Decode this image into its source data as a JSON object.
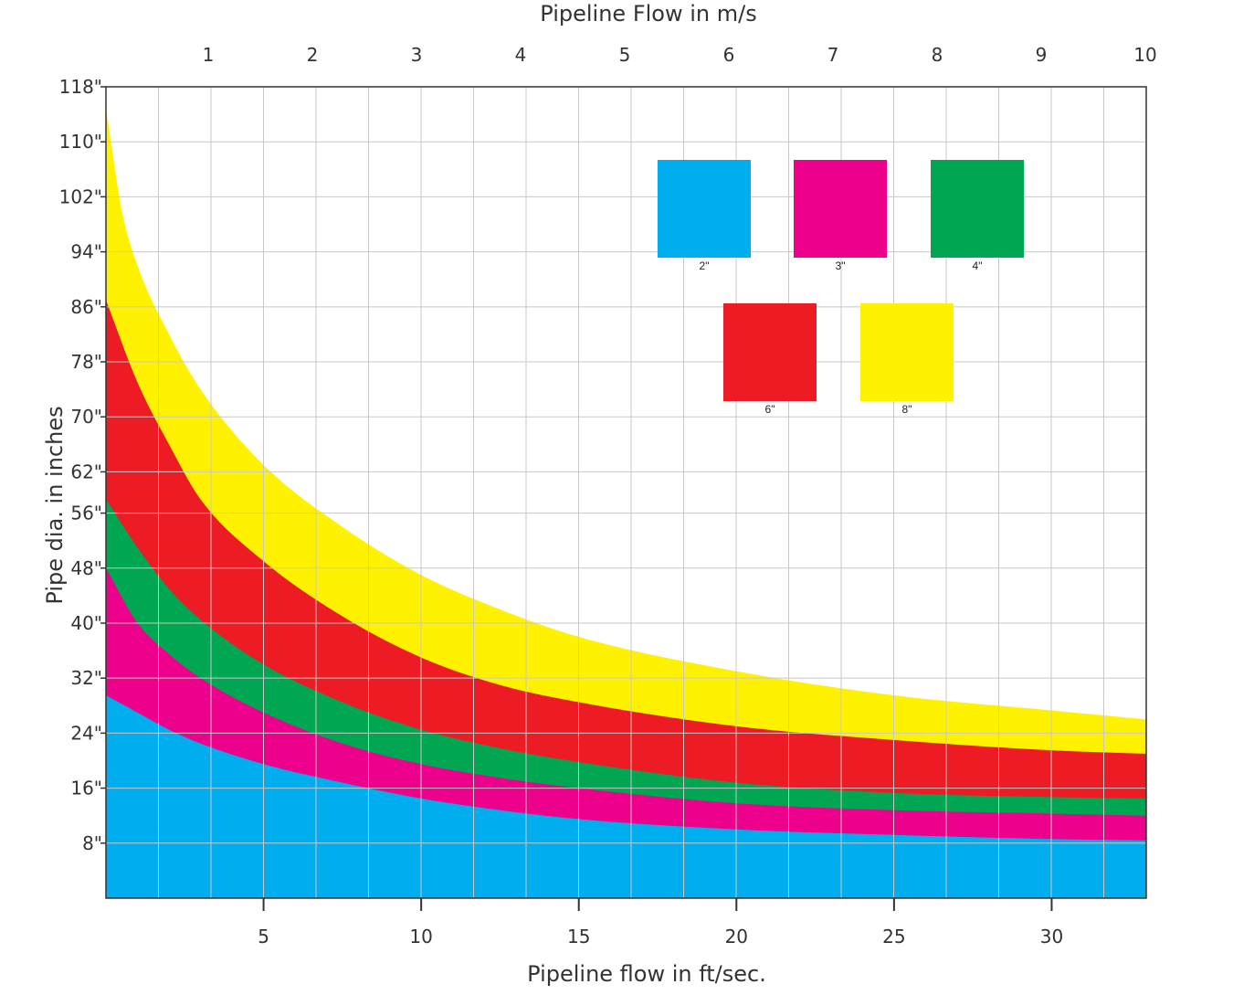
{
  "chart_data": {
    "type": "area",
    "xlabel": "Pipeline flow in ft/sec.",
    "x2label": "Pipeline Flow in m/s",
    "ylabel": "Pipe dia. in inches",
    "xlim": [
      0,
      33
    ],
    "ylim": [
      0,
      118
    ],
    "x_ticks": [
      5,
      10,
      15,
      20,
      25,
      30
    ],
    "x_tick_labels": [
      "5",
      "10",
      "15",
      "20",
      "25",
      "30"
    ],
    "x2_ticks": [
      1,
      2,
      3,
      4,
      5,
      6,
      7,
      8,
      9,
      10
    ],
    "x2_tick_labels": [
      "1",
      "2",
      "3",
      "4",
      "5",
      "6",
      "7",
      "8",
      "9",
      "10"
    ],
    "y_ticks": [
      8,
      16,
      24,
      32,
      40,
      48,
      56,
      62,
      70,
      78,
      86,
      94,
      102,
      110,
      118
    ],
    "y_tick_labels": [
      "8\"",
      "16\"",
      "24\"",
      "32\"",
      "40\"",
      "48\"",
      "56\"",
      "62\"",
      "70\"",
      "78\"",
      "86\"",
      "94\"",
      "102\"",
      "110\"",
      "118\""
    ],
    "grid": true,
    "legend_position": "top-right",
    "series": [
      {
        "name": "2\"",
        "color": "#00AEEF",
        "x": [
          0,
          1,
          2,
          3,
          5,
          7.5,
          10,
          12.5,
          15,
          20,
          25,
          30,
          33
        ],
        "values": [
          29.5,
          27,
          24.5,
          22.5,
          19.5,
          16.8,
          14.5,
          12.8,
          11.5,
          10,
          9.2,
          8.6,
          8.4
        ]
      },
      {
        "name": "3\"",
        "color": "#EC008C",
        "x": [
          0,
          1,
          2,
          3,
          5,
          7.5,
          10,
          12.5,
          15,
          20,
          25,
          30,
          33
        ],
        "values": [
          48,
          40,
          35.5,
          32,
          27,
          22.5,
          19.5,
          17.5,
          16,
          13.8,
          12.8,
          12.3,
          12
        ]
      },
      {
        "name": "4\"",
        "color": "#00A651",
        "x": [
          0,
          1,
          2,
          3,
          5,
          7.5,
          10,
          12.5,
          15,
          20,
          25,
          30,
          33
        ],
        "values": [
          58,
          51,
          45,
          40.5,
          34,
          28.5,
          24.5,
          21.8,
          19.8,
          16.8,
          15.3,
          14.7,
          14.5
        ]
      },
      {
        "name": "6\"",
        "color": "#ED1C24",
        "x": [
          0,
          1,
          2,
          3,
          5,
          7.5,
          10,
          12.5,
          15,
          20,
          25,
          30,
          33
        ],
        "values": [
          87,
          75,
          66,
          58,
          49,
          41,
          35,
          31,
          28.5,
          25,
          23,
          21.5,
          21
        ]
      },
      {
        "name": "8\"",
        "color": "#FFF200",
        "x": [
          0,
          0.5,
          1,
          2,
          3,
          5,
          7.5,
          10,
          12.5,
          15,
          20,
          25,
          30,
          33
        ],
        "values": [
          115,
          100,
          92,
          82,
          74,
          63,
          54,
          47,
          42,
          38,
          33,
          29.5,
          27.3,
          26
        ]
      }
    ]
  }
}
